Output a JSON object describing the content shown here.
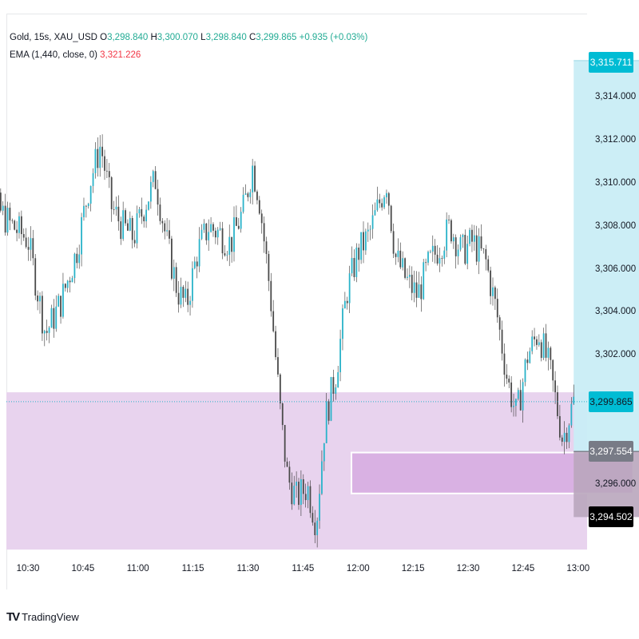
{
  "legend": {
    "symbol": "Gold, 15s, XAU_USD",
    "open_label": "O",
    "open": "3,298.840",
    "high_label": "H",
    "high": "3,300.070",
    "low_label": "L",
    "low": "3,298.840",
    "close_label": "C",
    "close": "3,299.865",
    "change": "+0.935 (+0.03%)",
    "ema_label": "EMA (1,440, close, 0)",
    "ema_value": "3,321.226"
  },
  "price_tags": {
    "target": "3,315.711",
    "current": "3,299.865",
    "entry": "3,297.554",
    "stop": "3,294.502"
  },
  "brand": {
    "logo": "TV",
    "name": "TradingView"
  },
  "colors": {
    "candle": "#2ab3c9",
    "wick": "#333333",
    "zone_pink": "#e8d3ee",
    "zone_box": "#d9b1e3",
    "target_fill": "#c9edf5",
    "stop_fill": "#b9a6bd",
    "target_tag": "#00bcd4",
    "entry_tag": "#787b86",
    "stop_tag": "#000000",
    "current_tag": "#00bcd4"
  },
  "chart_data": {
    "type": "candlestick",
    "x": [
      "10:30",
      "10:45",
      "11:00",
      "11:15",
      "11:30",
      "11:45",
      "12:00",
      "12:15",
      "12:30",
      "12:45",
      "13:00"
    ],
    "y_ticks": [
      "3,314.000",
      "3,312.000",
      "3,310.000",
      "3,308.000",
      "3,306.000",
      "3,304.000",
      "3,302.000",
      "3,296.000"
    ],
    "ylim": [
      3292.6,
      3316.2
    ],
    "close_path": [
      [
        10.25,
        3306.2
      ],
      [
        10.35,
        3309.0
      ],
      [
        10.42,
        3308.1
      ],
      [
        10.5,
        3307.4
      ],
      [
        10.58,
        3303.0
      ],
      [
        10.65,
        3304.5
      ],
      [
        10.72,
        3306.8
      ],
      [
        10.78,
        3310.0
      ],
      [
        10.83,
        3311.8
      ],
      [
        10.88,
        3308.9
      ],
      [
        10.93,
        3308.0
      ],
      [
        10.98,
        3307.5
      ],
      [
        11.03,
        3309.0
      ],
      [
        11.08,
        3310.2
      ],
      [
        11.13,
        3307.3
      ],
      [
        11.18,
        3305.0
      ],
      [
        11.22,
        3304.3
      ],
      [
        11.27,
        3306.8
      ],
      [
        11.32,
        3308.0
      ],
      [
        11.37,
        3307.7
      ],
      [
        11.42,
        3307.2
      ],
      [
        11.48,
        3308.8
      ],
      [
        11.52,
        3310.8
      ],
      [
        11.55,
        3309.4
      ],
      [
        11.6,
        3305.0
      ],
      [
        11.65,
        3299.0
      ],
      [
        11.68,
        3296.3
      ],
      [
        11.72,
        3295.4
      ],
      [
        11.77,
        3295.9
      ],
      [
        11.81,
        3294.2
      ],
      [
        11.85,
        3299.0
      ],
      [
        11.9,
        3301.2
      ],
      [
        11.95,
        3305.0
      ],
      [
        12.0,
        3306.8
      ],
      [
        12.05,
        3307.6
      ],
      [
        12.1,
        3309.2
      ],
      [
        12.13,
        3310.1
      ],
      [
        12.17,
        3306.6
      ],
      [
        12.22,
        3305.5
      ],
      [
        12.27,
        3304.8
      ],
      [
        12.32,
        3306.2
      ],
      [
        12.37,
        3307.1
      ],
      [
        12.42,
        3308.0
      ],
      [
        12.47,
        3306.8
      ],
      [
        12.52,
        3307.3
      ],
      [
        12.58,
        3306.4
      ],
      [
        12.63,
        3304.0
      ],
      [
        12.68,
        3300.8
      ],
      [
        12.72,
        3299.2
      ],
      [
        12.77,
        3302.0
      ],
      [
        12.82,
        3303.1
      ],
      [
        12.87,
        3301.4
      ],
      [
        12.9,
        3299.8
      ],
      [
        12.93,
        3298.1
      ],
      [
        12.96,
        3299.2
      ],
      [
        12.98,
        3299.865
      ]
    ],
    "zones": {
      "range_high": 3300.3,
      "range_low": 3292.2,
      "ob_high": 3297.5,
      "ob_low": 3295.6,
      "position_target": 3315.711,
      "position_entry": 3297.554,
      "position_stop": 3294.502
    }
  }
}
